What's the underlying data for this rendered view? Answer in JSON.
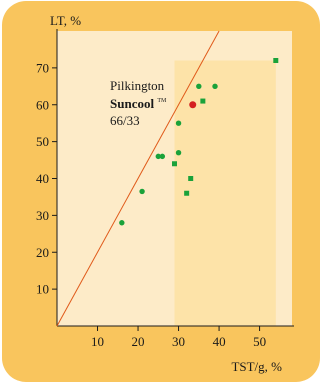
{
  "chart_data": {
    "type": "scatter",
    "title": "",
    "xlabel": "TST/g, %",
    "ylabel": "LT, %",
    "xlim": [
      0,
      58
    ],
    "ylim": [
      0,
      80
    ],
    "x_ticks": [
      10,
      20,
      30,
      40,
      50
    ],
    "y_ticks": [
      10,
      20,
      30,
      40,
      50,
      60,
      70
    ],
    "grid": false,
    "reference_line": {
      "from": [
        0,
        0
      ],
      "to": [
        40,
        80
      ],
      "color": "#e05a1a"
    },
    "highlight_region": {
      "x_from": 29,
      "x_to": 54,
      "y_from": 0,
      "y_to": 72,
      "color": "#fde3a8"
    },
    "series": [
      {
        "marker": "circle",
        "color": "#1aa23a",
        "points": [
          [
            16,
            28
          ],
          [
            21,
            36.5
          ],
          [
            25,
            46
          ],
          [
            26,
            46
          ],
          [
            30,
            47
          ],
          [
            30,
            55
          ],
          [
            35,
            65
          ],
          [
            39,
            65
          ]
        ]
      },
      {
        "marker": "square",
        "color": "#1aa23a",
        "points": [
          [
            29,
            44
          ],
          [
            32,
            36
          ],
          [
            33,
            40
          ],
          [
            36,
            61
          ],
          [
            54,
            72
          ]
        ]
      },
      {
        "marker": "circle",
        "color": "#d42020",
        "points": [
          [
            33.5,
            60
          ]
        ]
      }
    ],
    "annotation": {
      "line1": "Pilkington",
      "line2": "Suncool",
      "trademark": "TM",
      "line3": "66/33"
    }
  },
  "colors": {
    "card_background": "#f9c55d",
    "plot_background": "#fdebc8",
    "highlight_region": "#fde3a8",
    "axis": "#1a1a1a"
  }
}
